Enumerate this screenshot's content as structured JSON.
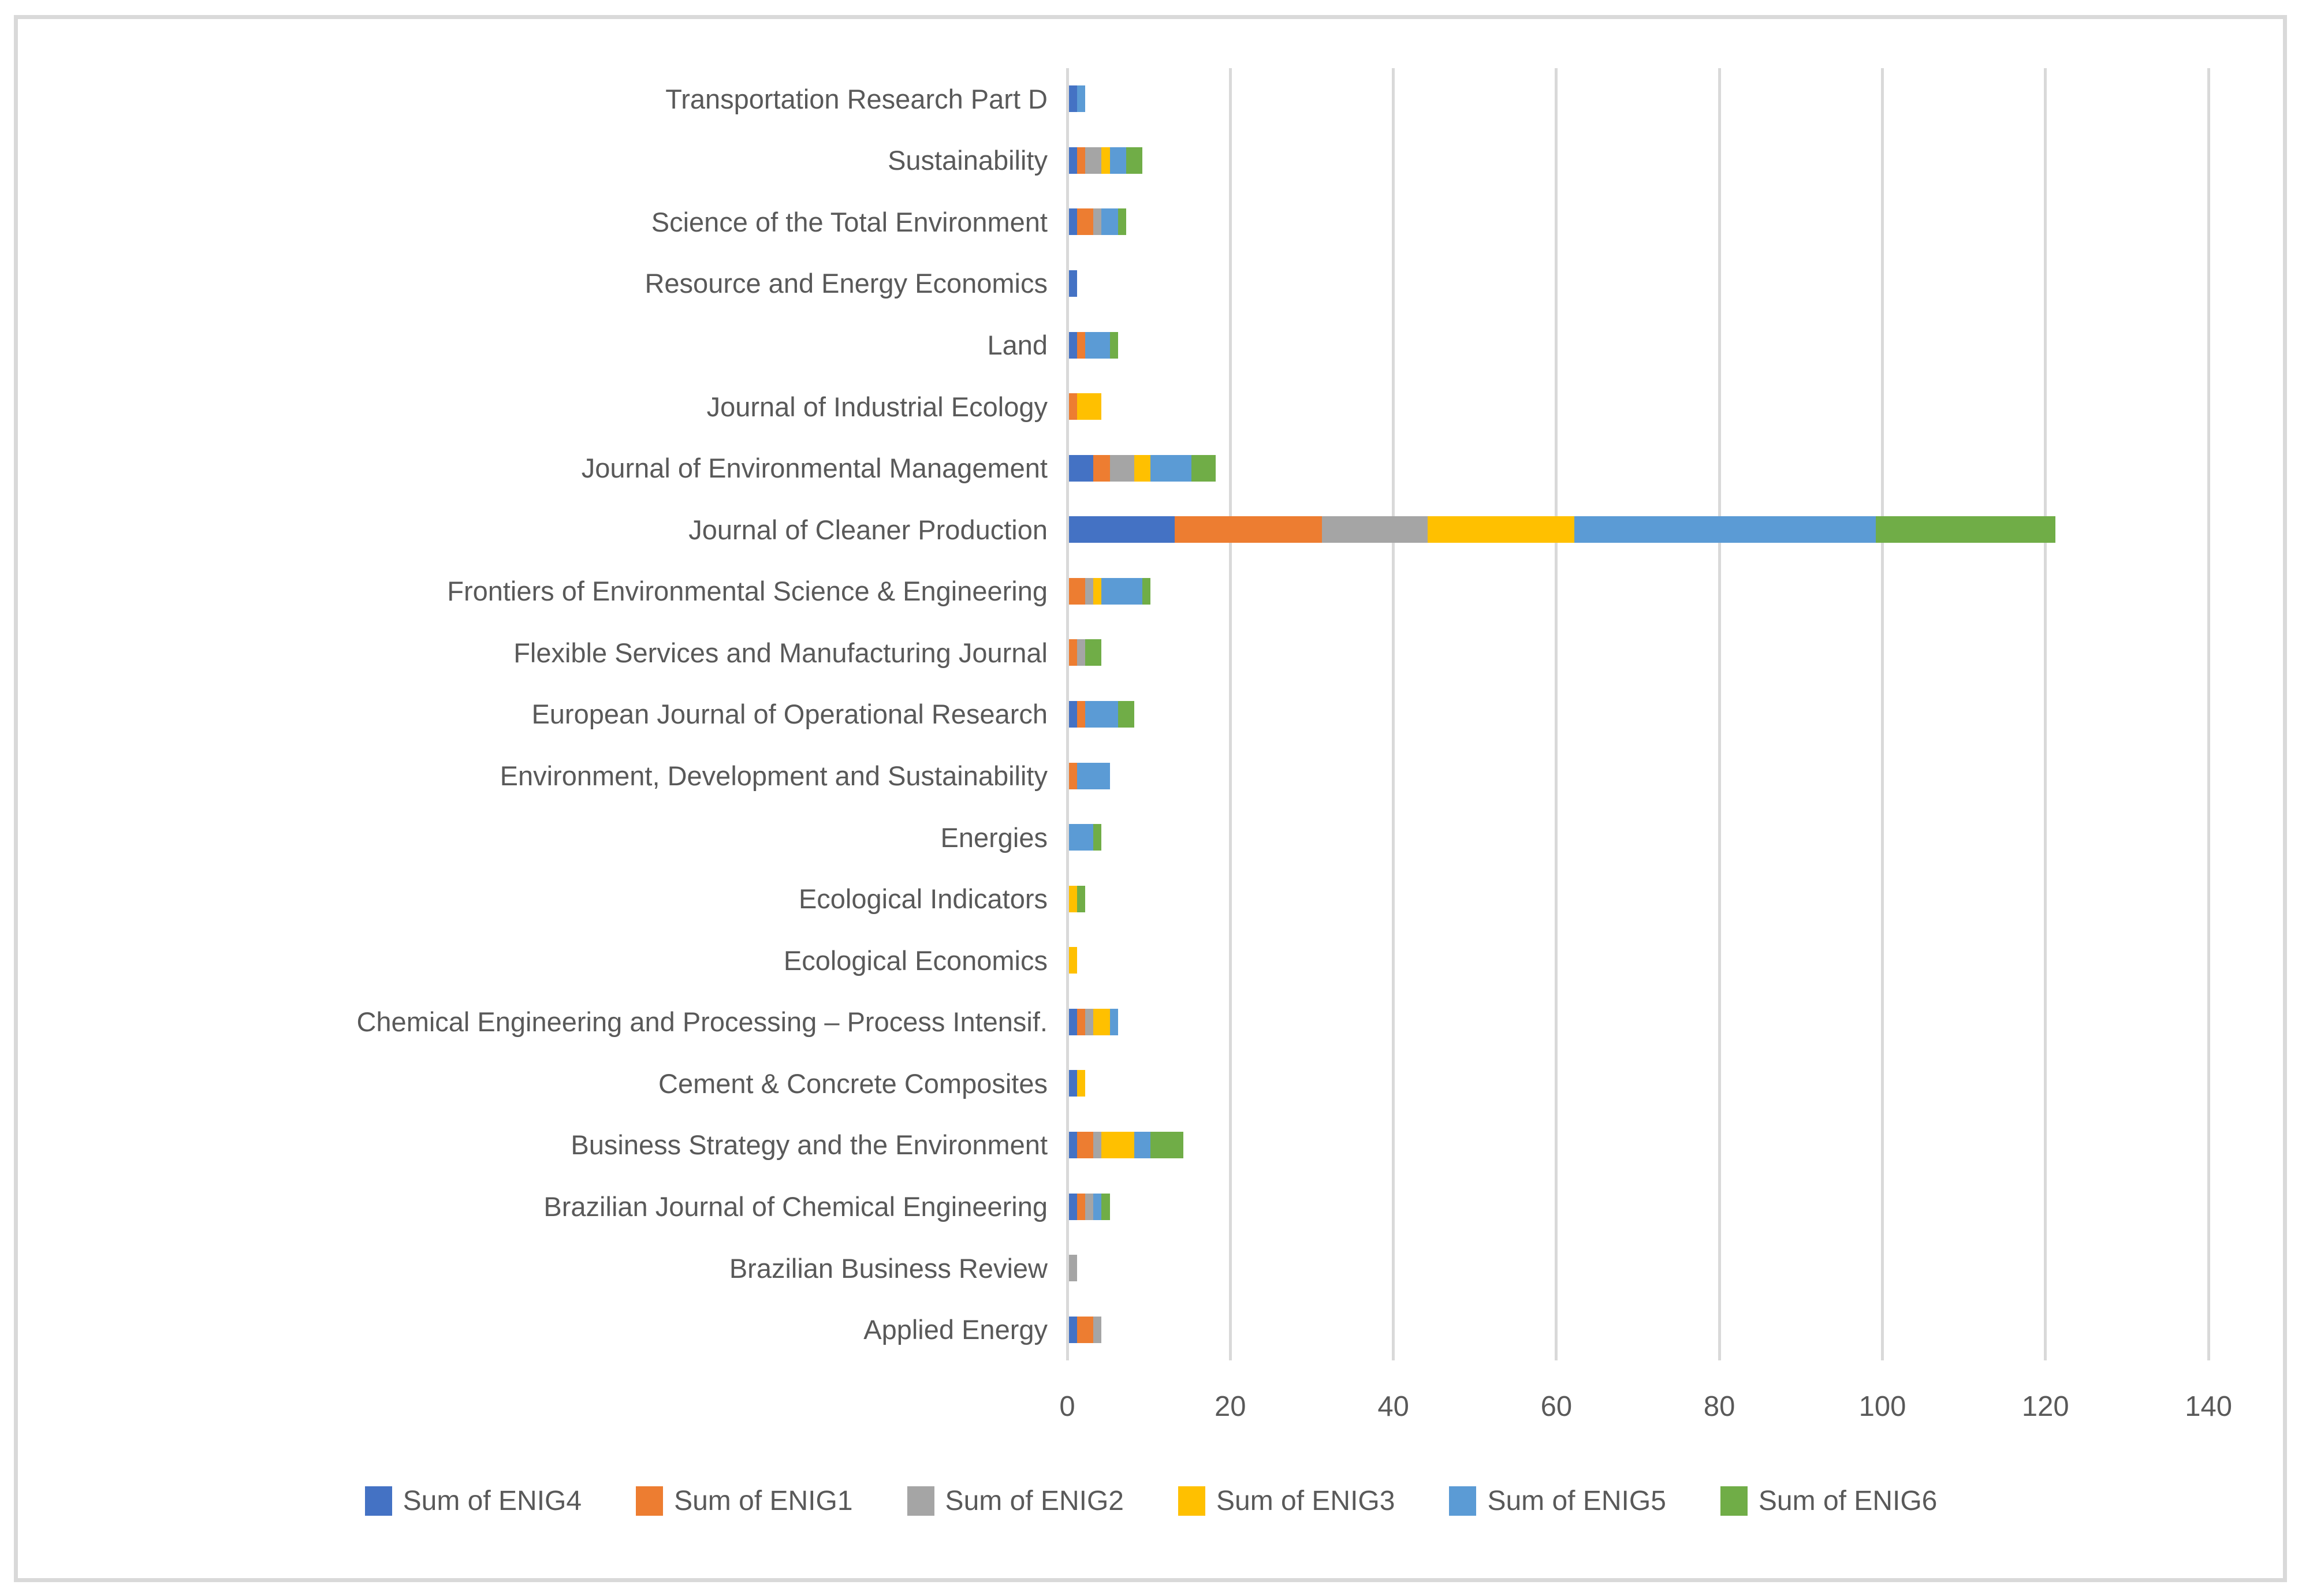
{
  "colors": {
    "background": "#FFFFFF",
    "frame_border": "#D9D9D9",
    "gridline": "#D9D9D9",
    "text": "#595959"
  },
  "chart_data": {
    "type": "bar",
    "orientation": "horizontal",
    "stacked": true,
    "title": "",
    "xlabel": "",
    "ylabel": "",
    "xlim": [
      0,
      140
    ],
    "x_ticks": [
      0,
      20,
      40,
      60,
      80,
      100,
      120,
      140
    ],
    "grid": true,
    "legend_position": "bottom",
    "categories": [
      "Transportation Research Part D",
      "Sustainability",
      "Science of the Total Environment",
      "Resource and Energy Economics",
      "Land",
      "Journal of Industrial Ecology",
      "Journal of Environmental Management",
      "Journal of Cleaner Production",
      "Frontiers of Environmental Science & Engineering",
      "Flexible Services and Manufacturing Journal",
      "European Journal of Operational Research",
      "Environment, Development and Sustainability",
      "Energies",
      "Ecological Indicators",
      "Ecological Economics",
      "Chemical Engineering and Processing – Process Intensif.",
      "Cement & Concrete Composites",
      "Business Strategy and the Environment",
      "Brazilian Journal of Chemical Engineering",
      "Brazilian Business Review",
      "Applied Energy"
    ],
    "series": [
      {
        "name": "Sum of ENIG4",
        "color": "#4472C4",
        "values": [
          1,
          1,
          1,
          1,
          1,
          0,
          3,
          13,
          0,
          0,
          1,
          0,
          0,
          0,
          0,
          1,
          1,
          1,
          1,
          0,
          1
        ]
      },
      {
        "name": "Sum of ENIG1",
        "color": "#ED7D31",
        "values": [
          0,
          1,
          2,
          0,
          1,
          1,
          2,
          18,
          2,
          1,
          1,
          1,
          0,
          0,
          0,
          1,
          0,
          2,
          1,
          0,
          2
        ]
      },
      {
        "name": "Sum of ENIG2",
        "color": "#A5A5A5",
        "values": [
          0,
          2,
          1,
          0,
          0,
          0,
          3,
          13,
          1,
          1,
          0,
          0,
          0,
          0,
          0,
          1,
          0,
          1,
          1,
          1,
          1
        ]
      },
      {
        "name": "Sum of ENIG3",
        "color": "#FFC000",
        "values": [
          0,
          1,
          0,
          0,
          0,
          3,
          2,
          18,
          1,
          0,
          0,
          0,
          0,
          1,
          1,
          2,
          1,
          4,
          0,
          0,
          0
        ]
      },
      {
        "name": "Sum of ENIG5",
        "color": "#5B9BD5",
        "values": [
          1,
          2,
          2,
          0,
          3,
          0,
          5,
          37,
          5,
          0,
          4,
          4,
          3,
          0,
          0,
          1,
          0,
          2,
          1,
          0,
          0
        ]
      },
      {
        "name": "Sum of ENIG6",
        "color": "#70AD47",
        "values": [
          0,
          2,
          1,
          0,
          1,
          0,
          3,
          22,
          1,
          2,
          2,
          0,
          1,
          1,
          0,
          0,
          0,
          4,
          1,
          0,
          0
        ]
      }
    ]
  }
}
